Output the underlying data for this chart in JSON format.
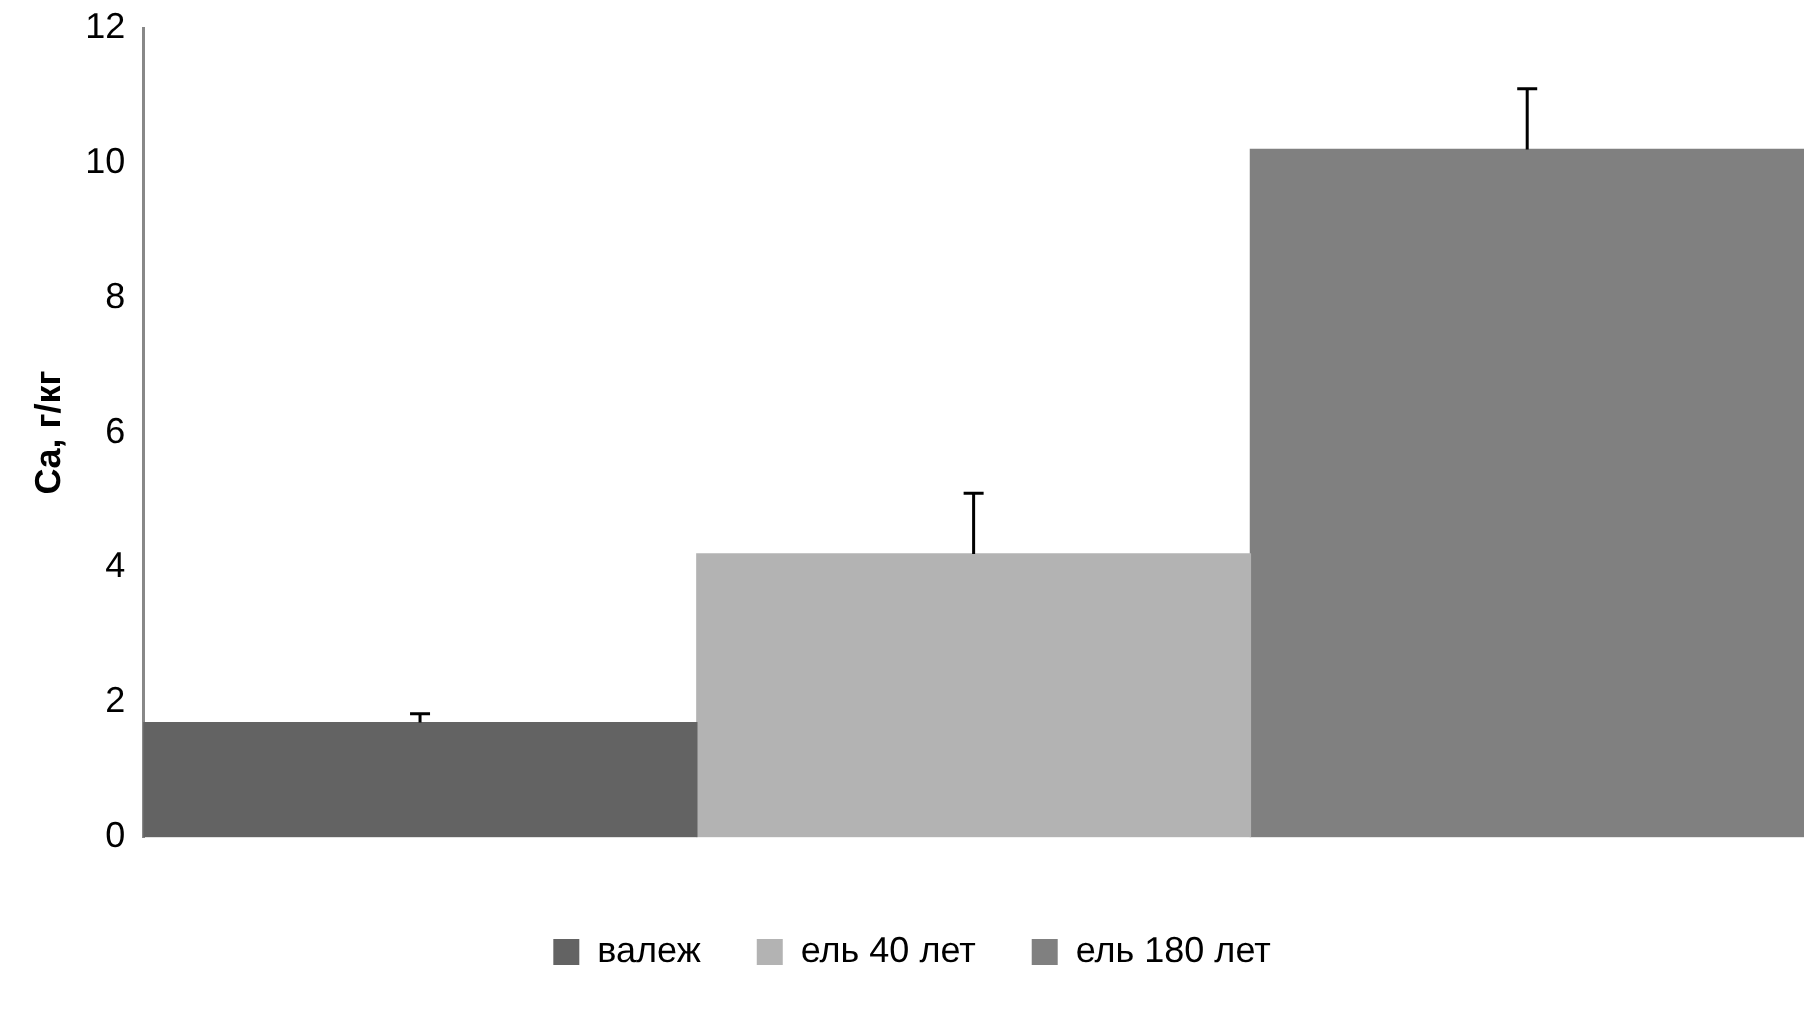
{
  "chart_data": {
    "type": "bar",
    "ylabel": "Ca, г/кг",
    "categories": [
      null
    ],
    "series": [
      {
        "name": "валеж",
        "color": "#636363",
        "values": [
          1.7
        ],
        "errors": [
          [
            1.7,
            1.83
          ]
        ]
      },
      {
        "name": "ель 40 лет",
        "color": "#b3b3b3",
        "values": [
          4.2
        ],
        "errors": [
          [
            4.2,
            5.1
          ]
        ]
      },
      {
        "name": "ель 180 лет",
        "color": "#808080",
        "values": [
          10.2
        ],
        "errors": [
          [
            10.2,
            11.1
          ]
        ]
      }
    ],
    "ylim": [
      0,
      12
    ],
    "yticks": [
      0,
      2,
      4,
      6,
      8,
      10,
      12
    ],
    "grid": false,
    "legend": "bottom"
  }
}
